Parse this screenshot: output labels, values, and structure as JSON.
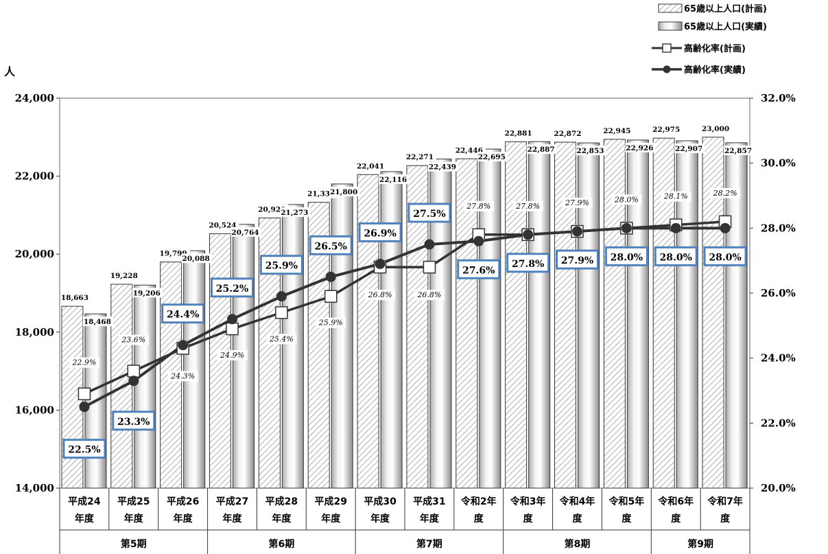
{
  "chart_data": {
    "type": "bar",
    "left_axis": {
      "unit": "人",
      "ylim": [
        14000,
        24000
      ],
      "ticks": [
        "14,000",
        "16,000",
        "18,000",
        "20,000",
        "22,000",
        "24,000"
      ]
    },
    "right_axis": {
      "ylim": [
        20.0,
        32.0
      ],
      "ticks": [
        "20.0%",
        "22.0%",
        "24.0%",
        "26.0%",
        "28.0%",
        "30.0%",
        "32.0%"
      ]
    },
    "categories": [
      [
        "平成24",
        "年度"
      ],
      [
        "平成25",
        "年度"
      ],
      [
        "平成26",
        "年度"
      ],
      [
        "平成27",
        "年度"
      ],
      [
        "平成28",
        "年度"
      ],
      [
        "平成29",
        "年度"
      ],
      [
        "平成30",
        "年度"
      ],
      [
        "平成31",
        "年度"
      ],
      [
        "令和2年",
        "度"
      ],
      [
        "令和3年",
        "度"
      ],
      [
        "令和4年",
        "度"
      ],
      [
        "令和5年",
        "度"
      ],
      [
        "令和6年",
        "度"
      ],
      [
        "令和7年",
        "度"
      ]
    ],
    "periods": [
      {
        "label": "第5期",
        "start": 0,
        "end": 2
      },
      {
        "label": "第6期",
        "start": 3,
        "end": 5
      },
      {
        "label": "第7期",
        "start": 6,
        "end": 8
      },
      {
        "label": "第8期",
        "start": 9,
        "end": 11
      },
      {
        "label": "第9期",
        "start": 12,
        "end": 13
      }
    ],
    "series": [
      {
        "name": "65歳以上人口(計画)",
        "kind": "bar",
        "axis": "left",
        "values": [
          18663,
          19228,
          19799,
          20524,
          20928,
          21330,
          22041,
          22271,
          22446,
          22881,
          22872,
          22945,
          22975,
          23000
        ],
        "labels": [
          "18,663",
          "19,228",
          "19,799",
          "20,524",
          "20,928",
          "21,330",
          "22,041",
          "22,271",
          "22,446",
          "22,881",
          "22,872",
          "22,945",
          "22,975",
          "23,000"
        ]
      },
      {
        "name": "65歳以上人口(実績)",
        "kind": "bar",
        "axis": "left",
        "values": [
          18468,
          19206,
          20088,
          20764,
          21273,
          21800,
          22116,
          22439,
          22695,
          22887,
          22853,
          22926,
          22907,
          22857
        ],
        "labels": [
          "18,468",
          "19,206",
          "20,088",
          "20,764",
          "21,273",
          "21,800",
          "22,116",
          "22,439",
          "22,695",
          "22,887",
          "22,853",
          "22,926",
          "22,907",
          "22,857"
        ]
      },
      {
        "name": "高齢化率(計画)",
        "kind": "line",
        "axis": "right",
        "values": [
          22.9,
          23.6,
          24.3,
          24.9,
          25.4,
          25.9,
          26.8,
          26.8,
          27.8,
          27.8,
          27.9,
          28.0,
          28.1,
          28.2
        ],
        "labels": [
          "22.9%",
          "23.6%",
          "24.3%",
          "24.9%",
          "25.4%",
          "25.9%",
          "26.8%",
          "26.8%",
          "27.8%",
          "27.8%",
          "27.9%",
          "28.0%",
          "28.1%",
          "28.2%"
        ]
      },
      {
        "name": "高齢化率(実績)",
        "kind": "line",
        "axis": "right",
        "values": [
          22.5,
          23.3,
          24.4,
          25.2,
          25.9,
          26.5,
          26.9,
          27.5,
          27.6,
          27.8,
          27.9,
          28.0,
          28.0,
          28.0
        ],
        "labels": [
          "22.5%",
          "23.3%",
          "24.4%",
          "25.2%",
          "25.9%",
          "26.5%",
          "26.9%",
          "27.5%",
          "27.6%",
          "27.8%",
          "27.9%",
          "28.0%",
          "28.0%",
          "28.0%"
        ]
      }
    ],
    "legend_position": "top-right",
    "grid": false,
    "colors": {
      "line": "#333333",
      "box_border": "#4f81bd",
      "bar_stroke": "#333333"
    }
  }
}
